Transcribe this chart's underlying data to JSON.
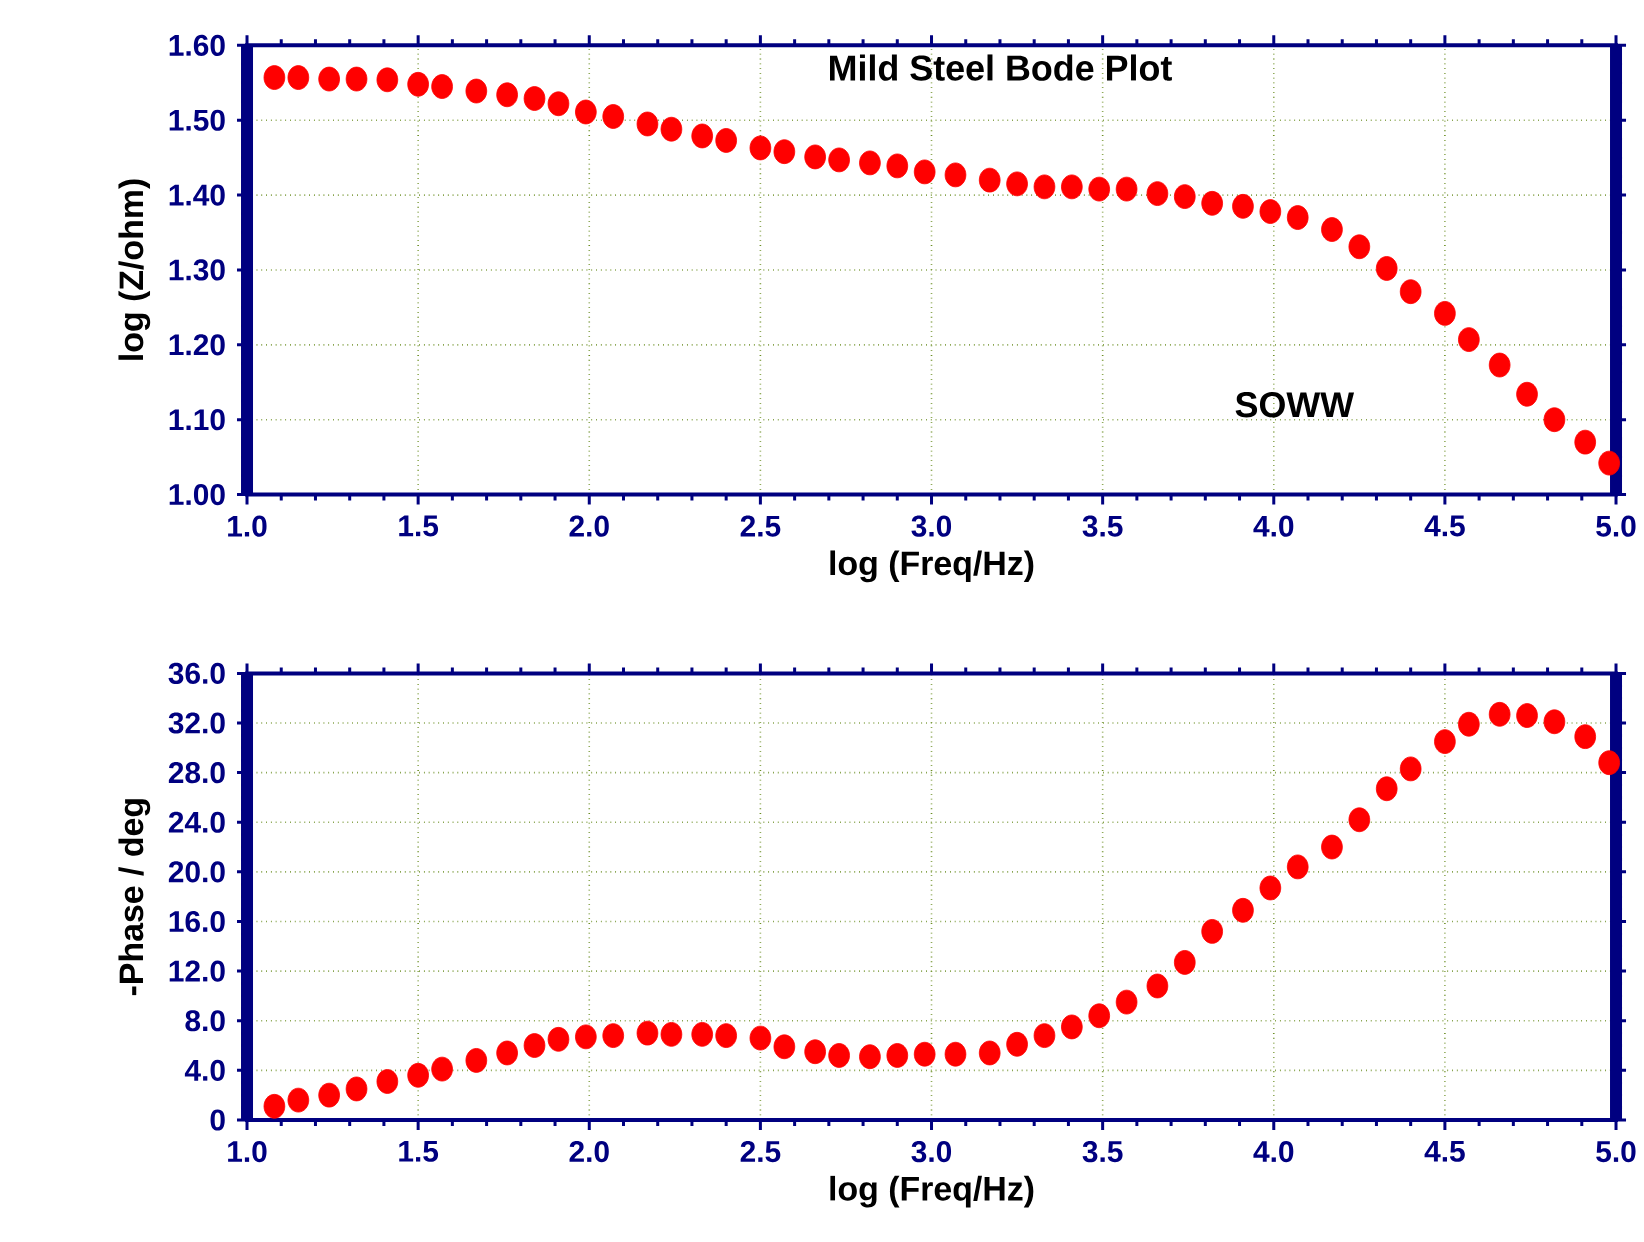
{
  "chart_data": [
    {
      "type": "scatter",
      "title": "Mild Steel  Bode Plot",
      "annotations": [
        "SOWW"
      ],
      "xlabel": "log (Freq/Hz)",
      "ylabel": "log (Z/ohm)",
      "color": "#ff0000",
      "marker": "circle",
      "grid": true,
      "x": [
        1.08,
        1.15,
        1.24,
        1.32,
        1.41,
        1.5,
        1.57,
        1.67,
        1.76,
        1.84,
        1.91,
        1.99,
        2.07,
        2.17,
        2.24,
        2.33,
        2.4,
        2.5,
        2.57,
        2.66,
        2.73,
        2.82,
        2.9,
        2.98,
        3.07,
        3.17,
        3.25,
        3.33,
        3.41,
        3.49,
        3.57,
        3.66,
        3.74,
        3.82,
        3.91,
        3.99,
        4.07,
        4.17,
        4.25,
        4.33,
        4.4,
        4.5,
        4.57,
        4.66,
        4.74,
        4.82,
        4.91,
        4.98
      ],
      "values": [
        1.557,
        1.557,
        1.555,
        1.555,
        1.554,
        1.548,
        1.545,
        1.539,
        1.534,
        1.529,
        1.522,
        1.511,
        1.505,
        1.495,
        1.488,
        1.479,
        1.473,
        1.463,
        1.458,
        1.451,
        1.447,
        1.443,
        1.439,
        1.431,
        1.427,
        1.42,
        1.415,
        1.411,
        1.411,
        1.408,
        1.408,
        1.402,
        1.398,
        1.389,
        1.385,
        1.378,
        1.37,
        1.354,
        1.331,
        1.302,
        1.271,
        1.242,
        1.207,
        1.173,
        1.134,
        1.1,
        1.07,
        1.042
      ],
      "xlim": [
        1.0,
        5.0
      ],
      "ylim": [
        1.0,
        1.6
      ],
      "xticks": [
        {
          "value": 1.0,
          "label": "1.0"
        },
        {
          "value": 1.5,
          "label": "1.5"
        },
        {
          "value": 2.0,
          "label": "2.0"
        },
        {
          "value": 2.5,
          "label": "2.5"
        },
        {
          "value": 3.0,
          "label": "3.0"
        },
        {
          "value": 3.5,
          "label": "3.5"
        },
        {
          "value": 4.0,
          "label": "4.0"
        },
        {
          "value": 4.5,
          "label": "4.5"
        },
        {
          "value": 5.0,
          "label": "5.0"
        }
      ],
      "yticks": [
        {
          "value": 1.0,
          "label": "1.00"
        },
        {
          "value": 1.1,
          "label": "1.10"
        },
        {
          "value": 1.2,
          "label": "1.20"
        },
        {
          "value": 1.3,
          "label": "1.30"
        },
        {
          "value": 1.4,
          "label": "1.40"
        },
        {
          "value": 1.5,
          "label": "1.50"
        },
        {
          "value": 1.6,
          "label": "1.60"
        }
      ]
    },
    {
      "type": "scatter",
      "xlabel": "log (Freq/Hz)",
      "ylabel": "-Phase / deg",
      "color": "#ff0000",
      "marker": "circle",
      "grid": true,
      "x": [
        1.08,
        1.15,
        1.24,
        1.32,
        1.41,
        1.5,
        1.57,
        1.67,
        1.76,
        1.84,
        1.91,
        1.99,
        2.07,
        2.17,
        2.24,
        2.33,
        2.4,
        2.5,
        2.57,
        2.66,
        2.73,
        2.82,
        2.9,
        2.98,
        3.07,
        3.17,
        3.25,
        3.33,
        3.41,
        3.49,
        3.57,
        3.66,
        3.74,
        3.82,
        3.91,
        3.99,
        4.07,
        4.17,
        4.25,
        4.33,
        4.4,
        4.5,
        4.57,
        4.66,
        4.74,
        4.82,
        4.91,
        4.98
      ],
      "values": [
        1.1,
        1.6,
        2.0,
        2.5,
        3.1,
        3.6,
        4.1,
        4.8,
        5.4,
        6.0,
        6.5,
        6.7,
        6.8,
        7.0,
        6.9,
        6.9,
        6.8,
        6.6,
        5.9,
        5.5,
        5.2,
        5.1,
        5.2,
        5.3,
        5.3,
        5.4,
        6.1,
        6.8,
        7.5,
        8.4,
        9.5,
        10.8,
        12.7,
        15.2,
        16.9,
        18.7,
        20.4,
        22.0,
        24.2,
        26.7,
        28.3,
        30.5,
        31.9,
        32.7,
        32.6,
        32.1,
        30.9,
        28.8
      ],
      "xlim": [
        1.0,
        5.0
      ],
      "ylim": [
        0,
        36.0
      ],
      "xticks": [
        {
          "value": 1.0,
          "label": "1.0"
        },
        {
          "value": 1.5,
          "label": "1.5"
        },
        {
          "value": 2.0,
          "label": "2.0"
        },
        {
          "value": 2.5,
          "label": "2.5"
        },
        {
          "value": 3.0,
          "label": "3.0"
        },
        {
          "value": 3.5,
          "label": "3.5"
        },
        {
          "value": 4.0,
          "label": "4.0"
        },
        {
          "value": 4.5,
          "label": "4.5"
        },
        {
          "value": 5.0,
          "label": "5.0"
        }
      ],
      "yticks": [
        0,
        {
          "value": 4.0,
          "label": "4.0"
        },
        {
          "value": 8.0,
          "label": "8.0"
        },
        {
          "value": 12.0,
          "label": "12.0"
        },
        {
          "value": 16.0,
          "label": "16.0"
        },
        {
          "value": 20.0,
          "label": "20.0"
        },
        {
          "value": 24.0,
          "label": "24.0"
        },
        {
          "value": 28.0,
          "label": "28.0"
        },
        {
          "value": 32.0,
          "label": "32.0"
        },
        {
          "value": 36.0,
          "label": "36.0"
        }
      ]
    }
  ]
}
